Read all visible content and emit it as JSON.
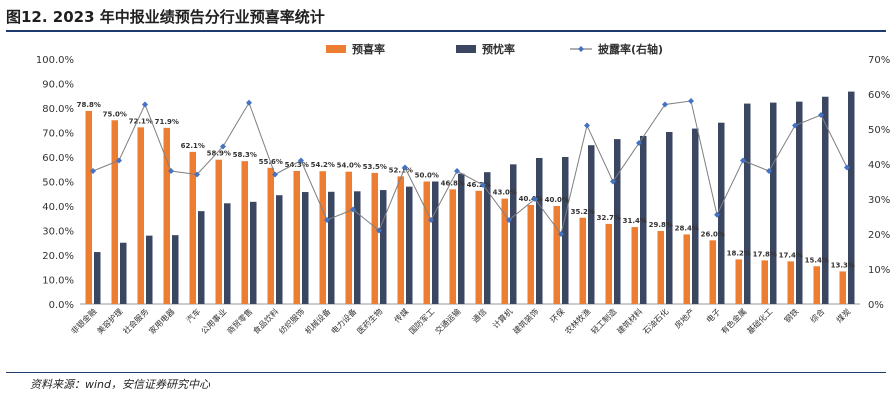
{
  "title": "图12. 2023 年中报业绩预告分行业预喜率统计",
  "source": "资料来源：wind，安信证券研究中心",
  "colors": {
    "bar1": "#ed7d31",
    "bar2": "#3b4660",
    "line": "#7f7f7f",
    "marker": "#4472c4"
  },
  "chart_data": {
    "type": "bar",
    "categories": [
      "非银金融",
      "美容护理",
      "社会服务",
      "家用电器",
      "汽车",
      "公用事业",
      "商贸零售",
      "食品饮料",
      "纺织服饰",
      "机械设备",
      "电力设备",
      "医药生物",
      "传媒",
      "国防军工",
      "交通运输",
      "通信",
      "计算机",
      "建筑装饰",
      "环保",
      "农林牧渔",
      "轻工制造",
      "建筑材料",
      "石油石化",
      "房地产",
      "电子",
      "有色金属",
      "基础化工",
      "钢铁",
      "综合",
      "煤炭"
    ],
    "series": [
      {
        "name": "预喜率",
        "axis": "left",
        "type": "bar",
        "values": [
          78.8,
          75.0,
          72.1,
          71.9,
          62.1,
          58.9,
          58.3,
          55.6,
          54.3,
          54.2,
          54.0,
          53.5,
          52.1,
          50.0,
          46.8,
          46.2,
          43.0,
          40.4,
          40.0,
          35.2,
          32.7,
          31.4,
          29.8,
          28.4,
          26.0,
          18.2,
          17.8,
          17.4,
          15.4,
          13.3
        ],
        "labels": [
          "78.8%",
          "75.0%",
          "72.1%",
          "71.9%",
          "62.1%",
          "58.9%",
          "58.3%",
          "55.6%",
          "54.3%",
          "54.2%",
          "54.0%",
          "53.5%",
          "52.1%",
          "50.0%",
          "46.8%",
          "46.2%",
          "43.0%",
          "40.4%",
          "40.0%",
          "35.2%",
          "32.7%",
          "31.4%",
          "29.8%",
          "28.4%",
          "26.0%",
          "18.2%",
          "17.8%",
          "17.4%",
          "15.4%",
          "13.3%"
        ]
      },
      {
        "name": "预忧率",
        "axis": "left",
        "type": "bar",
        "values": [
          21.2,
          25.0,
          27.9,
          28.1,
          37.9,
          41.1,
          41.7,
          44.4,
          45.7,
          45.8,
          46.0,
          46.5,
          47.9,
          50.0,
          53.2,
          53.8,
          57.0,
          59.6,
          60.0,
          64.8,
          67.3,
          68.6,
          70.2,
          71.6,
          74.0,
          81.8,
          82.2,
          82.6,
          84.6,
          86.7
        ]
      },
      {
        "name": "披露率(右轴)",
        "axis": "right",
        "type": "line",
        "values": [
          38.0,
          41.0,
          57.0,
          38.0,
          37.0,
          45.0,
          57.5,
          37.0,
          41.0,
          24.0,
          27.0,
          21.0,
          39.0,
          24.0,
          38.0,
          34.0,
          24.0,
          30.0,
          20.0,
          51.0,
          35.0,
          46.0,
          57.0,
          58.0,
          25.5,
          41.0,
          38.0,
          51.0,
          54.0,
          39.0
        ]
      }
    ],
    "ylim_left": [
      0,
      100
    ],
    "ylim_right": [
      0,
      70
    ],
    "yticks_left": [
      "0.0%",
      "10.0%",
      "20.0%",
      "30.0%",
      "40.0%",
      "50.0%",
      "60.0%",
      "70.0%",
      "80.0%",
      "90.0%",
      "100.0%"
    ],
    "yticks_right": [
      "0%",
      "10%",
      "20%",
      "30%",
      "40%",
      "50%",
      "60%",
      "70%"
    ],
    "legend_position": "top-right",
    "grid": false
  }
}
